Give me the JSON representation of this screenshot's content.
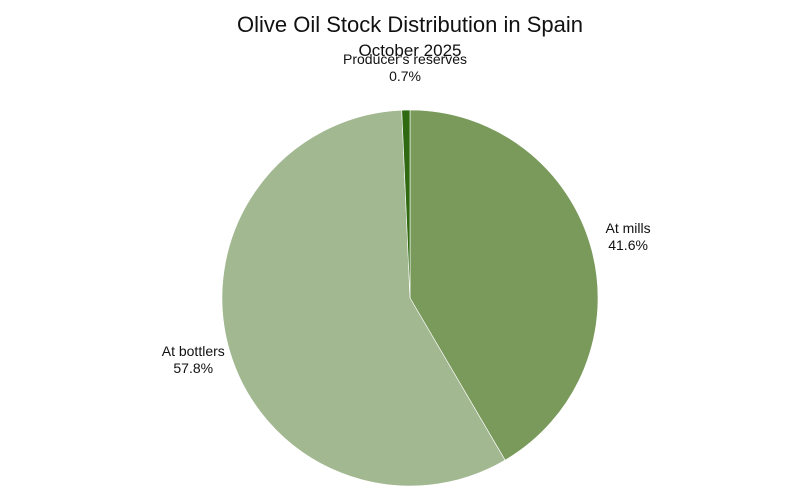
{
  "chart_data": {
    "type": "pie",
    "title": "Olive Oil Stock Distribution in Spain",
    "subtitle": "October 2025",
    "slices": [
      {
        "label": "At mills",
        "value": 41.6,
        "value_label": "41.6%",
        "color": "#7a9a5c"
      },
      {
        "label": "At bottlers",
        "value": 57.8,
        "value_label": "57.8%",
        "color": "#a2b890"
      },
      {
        "label": "Producer's reserves",
        "value": 0.7,
        "value_label": "0.7%",
        "color": "#2f6a12"
      }
    ],
    "start_angle_deg": 0,
    "direction": "clockwise",
    "legend": "none"
  }
}
